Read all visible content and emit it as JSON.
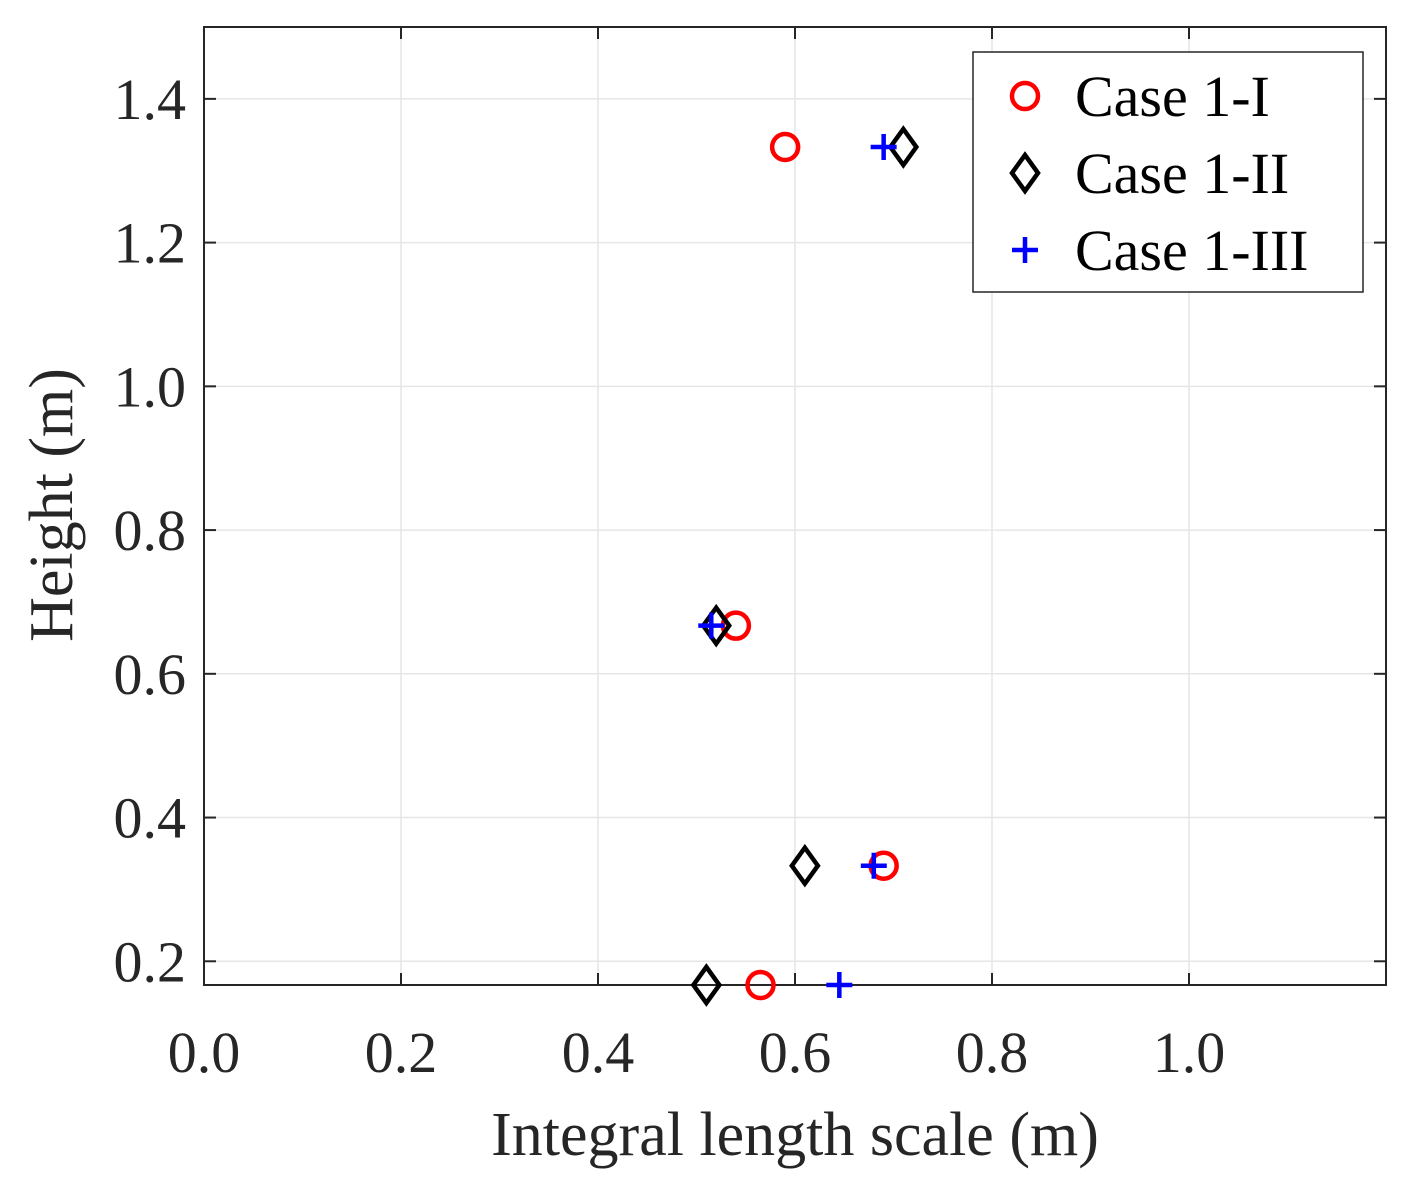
{
  "chart_data": {
    "type": "scatter",
    "title": "",
    "xlabel": "Integral length scale (m)",
    "ylabel": "Height (m)",
    "xlim": [
      0,
      1.2
    ],
    "ylim": [
      0.167,
      1.5
    ],
    "xticks": [
      "0.0",
      "0.2",
      "0.4",
      "0.6",
      "0.8",
      "1.0"
    ],
    "xtick_values": [
      0,
      0.2,
      0.4,
      0.6,
      0.8,
      1.0
    ],
    "yticks": [
      "0.2",
      "0.4",
      "0.6",
      "0.8",
      "1.0",
      "1.2",
      "1.4"
    ],
    "ytick_values": [
      0.2,
      0.4,
      0.6,
      0.8,
      1.0,
      1.2,
      1.4
    ],
    "grid": true,
    "legend_position": "top-right",
    "series": [
      {
        "name": "Case 1-I",
        "marker": "circle",
        "color": "#ff0000",
        "points": [
          [
            0.59,
            1.333
          ],
          [
            0.54,
            0.667
          ],
          [
            0.69,
            0.333
          ],
          [
            0.565,
            0.167
          ]
        ]
      },
      {
        "name": "Case 1-II",
        "marker": "diamond",
        "color": "#000000",
        "points": [
          [
            0.71,
            1.333
          ],
          [
            0.52,
            0.667
          ],
          [
            0.61,
            0.333
          ],
          [
            0.51,
            0.167
          ]
        ]
      },
      {
        "name": "Case 1-III",
        "marker": "plus",
        "color": "#0000ff",
        "points": [
          [
            0.69,
            1.333
          ],
          [
            0.515,
            0.667
          ],
          [
            0.68,
            0.333
          ],
          [
            0.645,
            0.167
          ]
        ]
      }
    ]
  }
}
